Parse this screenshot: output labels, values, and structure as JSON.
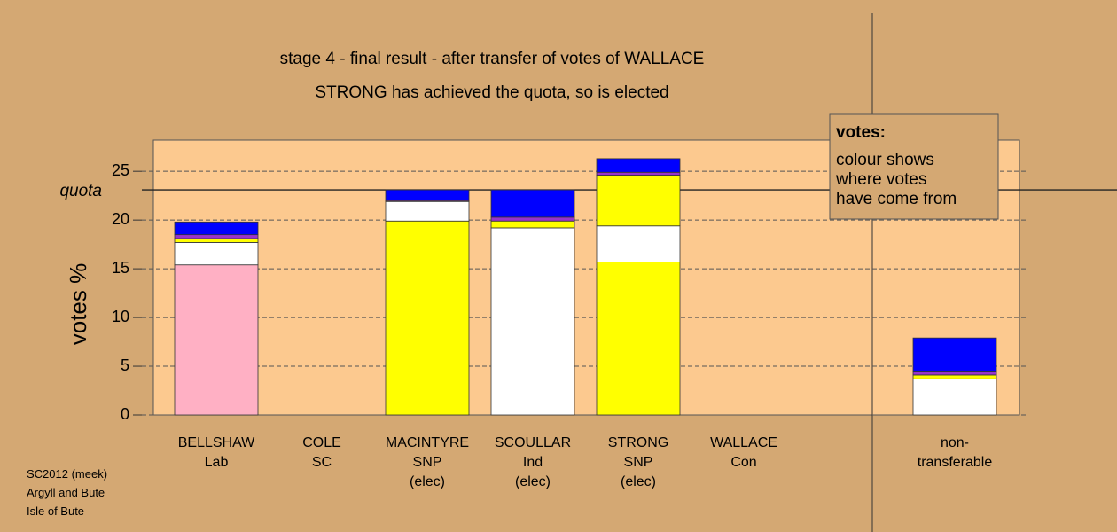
{
  "chart_data": {
    "type": "stacked-bar",
    "title": "stage 4 - final result - after transfer of votes of WALLACE",
    "subtitle": "STRONG has achieved the quota, so is elected",
    "y_label": "votes %",
    "categories": [
      "BELLSHAW\nLab",
      "COLE\nSC",
      "MACINTYRE\nSNP\n(elec)",
      "SCOULLAR\nInd\n(elec)",
      "STRONG\nSNP\n(elec)",
      "WALLACE\nCon",
      "non-\ntransferable"
    ],
    "series": [
      {
        "colors": [
          "#ffb0c4",
          "#9933cc",
          "#ffff00",
          "#ffffff",
          "#ffff00",
          "#0000ff",
          "#ffffff"
        ],
        "values": [
          15.4,
          0,
          19.9,
          19.2,
          15.7,
          0,
          0
        ]
      },
      {
        "color": "#ffffff",
        "values": [
          2.3,
          0,
          2.0,
          0,
          3.7,
          0,
          3.7
        ]
      },
      {
        "color": "#ffff00",
        "values": [
          0.4,
          0,
          0,
          0.7,
          5.2,
          0,
          0.4
        ]
      },
      {
        "color": "#9933cc",
        "values": [
          0.4,
          0,
          0.1,
          0.4,
          0.3,
          0,
          0.4
        ]
      },
      {
        "color": "#0000ff",
        "values": [
          1.3,
          0,
          1.1,
          2.8,
          1.4,
          0,
          3.4
        ]
      }
    ],
    "quota_label": "quota",
    "quota": 23.1,
    "ylim": [
      0,
      28.2
    ],
    "yticks": [
      0,
      5,
      10,
      15,
      20,
      25
    ],
    "grid": true,
    "legend_box": {
      "title": "votes:",
      "text": "colour shows\nwhere votes\nhave come from"
    },
    "footer": "SC2012 (meek)\nArgyll and Bute\nIsle of Bute"
  }
}
